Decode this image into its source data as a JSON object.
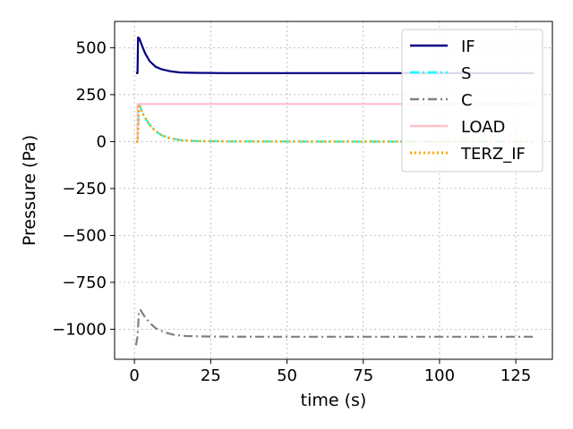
{
  "chart_data": {
    "type": "line",
    "title": "",
    "xlabel": "time (s)",
    "ylabel": "Pressure (Pa)",
    "xlim": [
      -6.5,
      137
    ],
    "ylim": [
      -1160,
      640
    ],
    "xticks": [
      0,
      25,
      50,
      75,
      100,
      125
    ],
    "yticks": [
      500,
      250,
      0,
      -250,
      -500,
      -750,
      -1000
    ],
    "ytick_labels": [
      "500",
      "250",
      "0",
      "−250",
      "−500",
      "−750",
      "−1000"
    ],
    "grid": true,
    "legend_position": "top-right",
    "series": [
      {
        "name": "IF",
        "color": "#000080",
        "dash": "solid",
        "x": [
          0.5,
          1,
          1.2,
          1.6,
          2.5,
          3.5,
          5,
          7,
          9,
          12,
          15,
          20,
          30,
          50,
          80,
          131
        ],
        "y": [
          365,
          365,
          555,
          550,
          510,
          470,
          428,
          398,
          385,
          374,
          368,
          366,
          365,
          365,
          365,
          365
        ]
      },
      {
        "name": "S",
        "color": "#00ffff",
        "dash": "dashdot",
        "x": [
          0.5,
          1,
          1.5,
          3,
          5,
          7,
          9,
          12,
          15,
          20,
          30,
          60,
          131
        ],
        "y": [
          0,
          0,
          198,
          140,
          88,
          55,
          33,
          16,
          8,
          3,
          1,
          0,
          0
        ]
      },
      {
        "name": "C",
        "color": "#808080",
        "dash": "dashdot",
        "x": [
          0.5,
          1,
          1.5,
          2,
          3,
          5,
          7,
          10,
          13,
          17,
          25,
          40,
          131
        ],
        "y": [
          -1085,
          -1040,
          -900,
          -898,
          -925,
          -965,
          -995,
          -1017,
          -1030,
          -1036,
          -1039,
          -1040,
          -1040
        ]
      },
      {
        "name": "LOAD",
        "color": "#ffc0cb",
        "dash": "solid",
        "x": [
          0.5,
          1,
          1.05,
          131
        ],
        "y": [
          0,
          0,
          200,
          200
        ]
      },
      {
        "name": "TERZ_IF",
        "color": "#ffa500",
        "dash": "dotted",
        "x": [
          0.5,
          1,
          1.5,
          3,
          5,
          7,
          9,
          12,
          15,
          20,
          30,
          60,
          131
        ],
        "y": [
          0,
          0,
          198,
          140,
          88,
          55,
          33,
          16,
          8,
          3,
          1,
          0,
          0
        ]
      }
    ]
  }
}
